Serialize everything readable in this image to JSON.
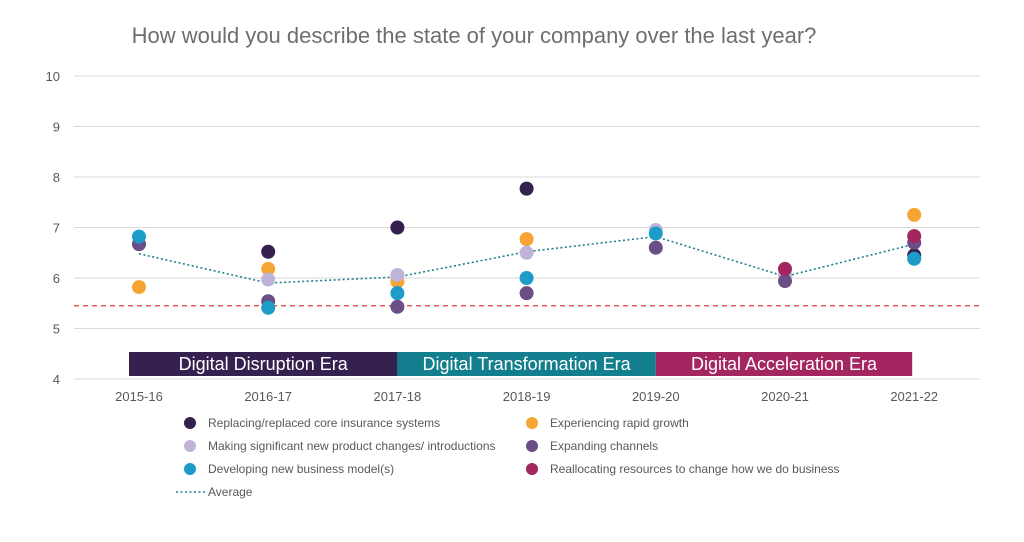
{
  "chart_data": {
    "type": "scatter",
    "title": "How would you describe the state of your company over the last year?",
    "xlabel": "",
    "ylabel": "",
    "categories": [
      "2015-16",
      "2016-17",
      "2017-18",
      "2018-19",
      "2019-20",
      "2020-21",
      "2021-22"
    ],
    "yticks": [
      "4",
      "5",
      "6",
      "7",
      "8",
      "9",
      "10"
    ],
    "ylim": [
      4,
      10
    ],
    "grid": "horizontal",
    "legend_position": "bottom",
    "reference_line": {
      "value": 5.45,
      "style": "dashed",
      "color": "#e0413a"
    },
    "series": [
      {
        "name": "Replacing/replaced core insurance systems",
        "color": "#35214f",
        "values": [
          null,
          6.52,
          7.0,
          7.77,
          null,
          null,
          6.45
        ]
      },
      {
        "name": "Experiencing rapid growth",
        "color": "#f6a535",
        "values": [
          5.82,
          6.18,
          5.93,
          6.77,
          null,
          null,
          7.25
        ]
      },
      {
        "name": "Making significant new product changes/ introductions",
        "color": "#bfb3da",
        "values": [
          6.67,
          5.97,
          6.06,
          6.5,
          6.95,
          6.07,
          null
        ]
      },
      {
        "name": "Expanding channels",
        "color": "#6a4e85",
        "values": [
          6.67,
          5.54,
          5.43,
          5.7,
          6.6,
          5.94,
          6.7
        ]
      },
      {
        "name": "Developing new business model(s)",
        "color": "#1d9cc8",
        "values": [
          6.82,
          5.41,
          5.7,
          6.0,
          6.88,
          null,
          6.38
        ]
      },
      {
        "name": "Reallocating resources to change how we do business",
        "color": "#a42660",
        "values": [
          null,
          null,
          null,
          null,
          null,
          6.18,
          6.83
        ]
      },
      {
        "name": "Average",
        "color": "#1f7f8e",
        "style": "dotted-line",
        "values": [
          6.48,
          5.9,
          6.02,
          6.52,
          6.82,
          6.03,
          6.67
        ]
      }
    ],
    "eras": [
      {
        "label": "Digital Disruption Era",
        "color": "#35214f",
        "from": "2015-16",
        "to": "2017-18"
      },
      {
        "label": "Digital Transformation Era",
        "color": "#137e8e",
        "from": "2017-18",
        "to": "2019-20"
      },
      {
        "label": "Digital Acceleration Era",
        "color": "#a42660",
        "from": "2019-20",
        "to": "2021-22"
      }
    ]
  }
}
